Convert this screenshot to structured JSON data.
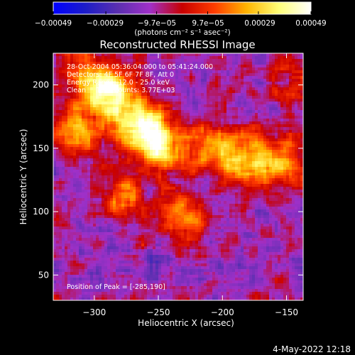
{
  "chart_data": {
    "type": "heatmap",
    "title": "Reconstructed RHESSI Image",
    "xlabel": "Heliocentric X (arcsec)",
    "ylabel": "Heliocentric Y (arcsec)",
    "xlim": [
      -332,
      -137
    ],
    "ylim": [
      30,
      225
    ],
    "xticks": [
      -300,
      -250,
      -200,
      -150
    ],
    "xtick_labels": [
      "−300",
      "−250",
      "−200",
      "−150"
    ],
    "yticks": [
      50,
      100,
      150,
      200
    ],
    "ytick_labels": [
      "50",
      "100",
      "150",
      "200"
    ],
    "colorbar": {
      "range": [
        -0.00049,
        0.00049
      ],
      "ticks": [
        -0.00049,
        -0.00029,
        -9.7e-05,
        9.7e-05,
        0.00029,
        0.00049
      ],
      "tick_labels": [
        "−0.00049",
        "−0.00029",
        "−9.7e−05",
        "9.7e−05",
        "0.00029",
        "0.00049"
      ],
      "unit_label": "(photons cm⁻² s⁻¹ asec⁻²)"
    },
    "annotations": [
      "28-Oct-2004 05:36:04.000 to 05:41:24.000",
      "Detectors: 4F 5F 6F 7F 8F, Att 0",
      "Energy Range: 12.0 - 25.0 keV",
      "Clean     Total counts: 3.77E+03"
    ],
    "peak_label": "Position of Peak = [-285,190]",
    "peak": [
      -285,
      190
    ],
    "bright_regions": [
      {
        "x": -285,
        "y": 190,
        "peak": 0.00049
      },
      {
        "x": -262,
        "y": 165,
        "peak": 0.00045
      },
      {
        "x": -248,
        "y": 152,
        "peak": 0.0004
      },
      {
        "x": -305,
        "y": 205,
        "peak": 0.00038
      },
      {
        "x": -315,
        "y": 160,
        "peak": 0.00032
      },
      {
        "x": -205,
        "y": 150,
        "peak": 0.00034
      },
      {
        "x": -180,
        "y": 138,
        "peak": 0.0003
      },
      {
        "x": -155,
        "y": 135,
        "peak": 0.00033
      },
      {
        "x": -230,
        "y": 95,
        "peak": 0.0003
      },
      {
        "x": -275,
        "y": 110,
        "peak": 0.00024
      },
      {
        "x": -140,
        "y": 200,
        "peak": 0.00022
      }
    ]
  },
  "timestamp": "4-May-2022 12:18",
  "colors": {
    "background": "#000000",
    "text": "#ffffff",
    "colormap": [
      "#0000ff",
      "#1d1dc8",
      "#5a2fb0",
      "#a030c8",
      "#c80000",
      "#ff3c00",
      "#ffb400",
      "#ffff78",
      "#ffffff"
    ]
  }
}
